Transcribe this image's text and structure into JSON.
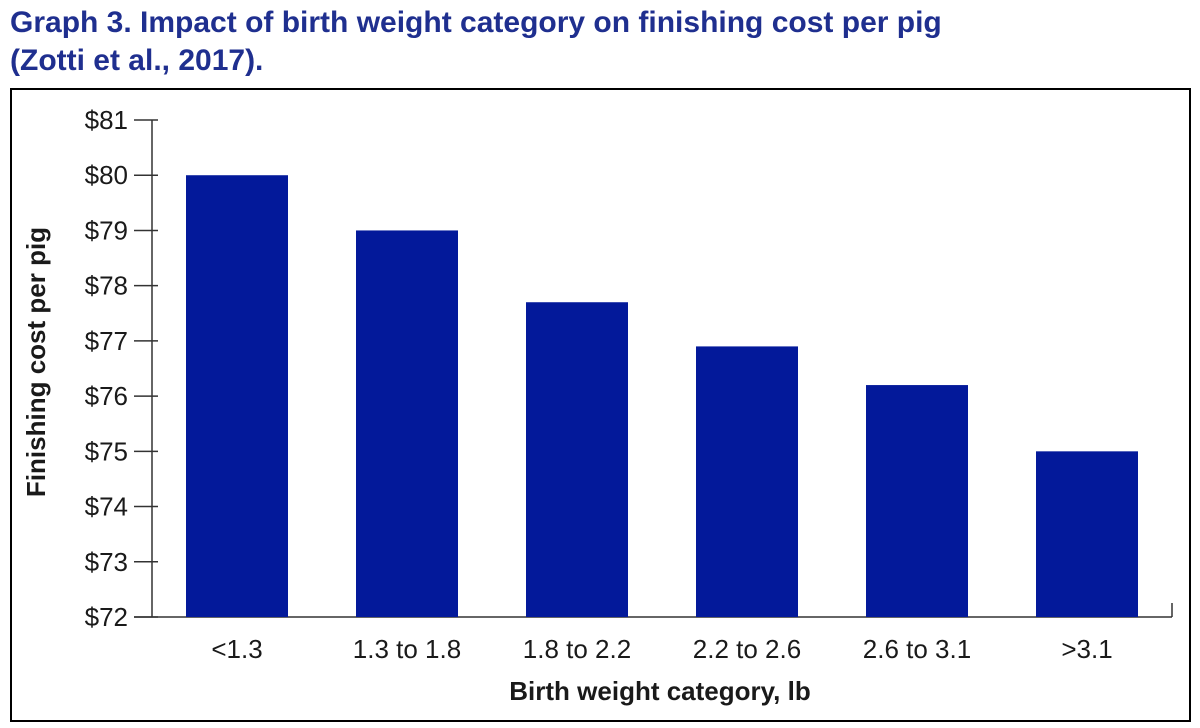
{
  "title_line1": "Graph 3.  Impact of birth weight category on finishing cost per pig",
  "title_line2": "(Zotti et al., 2017).",
  "chart_data": {
    "type": "bar",
    "title": "Graph 3.  Impact of birth weight category on finishing cost per pig (Zotti et al., 2017).",
    "xlabel": "Birth weight category, lb",
    "ylabel": "Finishing cost per pig",
    "categories": [
      "<1.3",
      "1.3 to 1.8",
      "1.8 to 2.2",
      "2.2 to 2.6",
      "2.6 to 3.1",
      ">3.1"
    ],
    "values": [
      80.0,
      79.0,
      77.7,
      76.9,
      76.2,
      75.0
    ],
    "ylim": [
      72,
      81
    ],
    "yticks": [
      72,
      73,
      74,
      75,
      76,
      77,
      78,
      79,
      80,
      81
    ],
    "ytick_labels": [
      "$72",
      "$73",
      "$74",
      "$75",
      "$76",
      "$77",
      "$78",
      "$79",
      "$80",
      "$81"
    ],
    "bar_color": "#03199a",
    "grid": false,
    "legend": "none"
  }
}
